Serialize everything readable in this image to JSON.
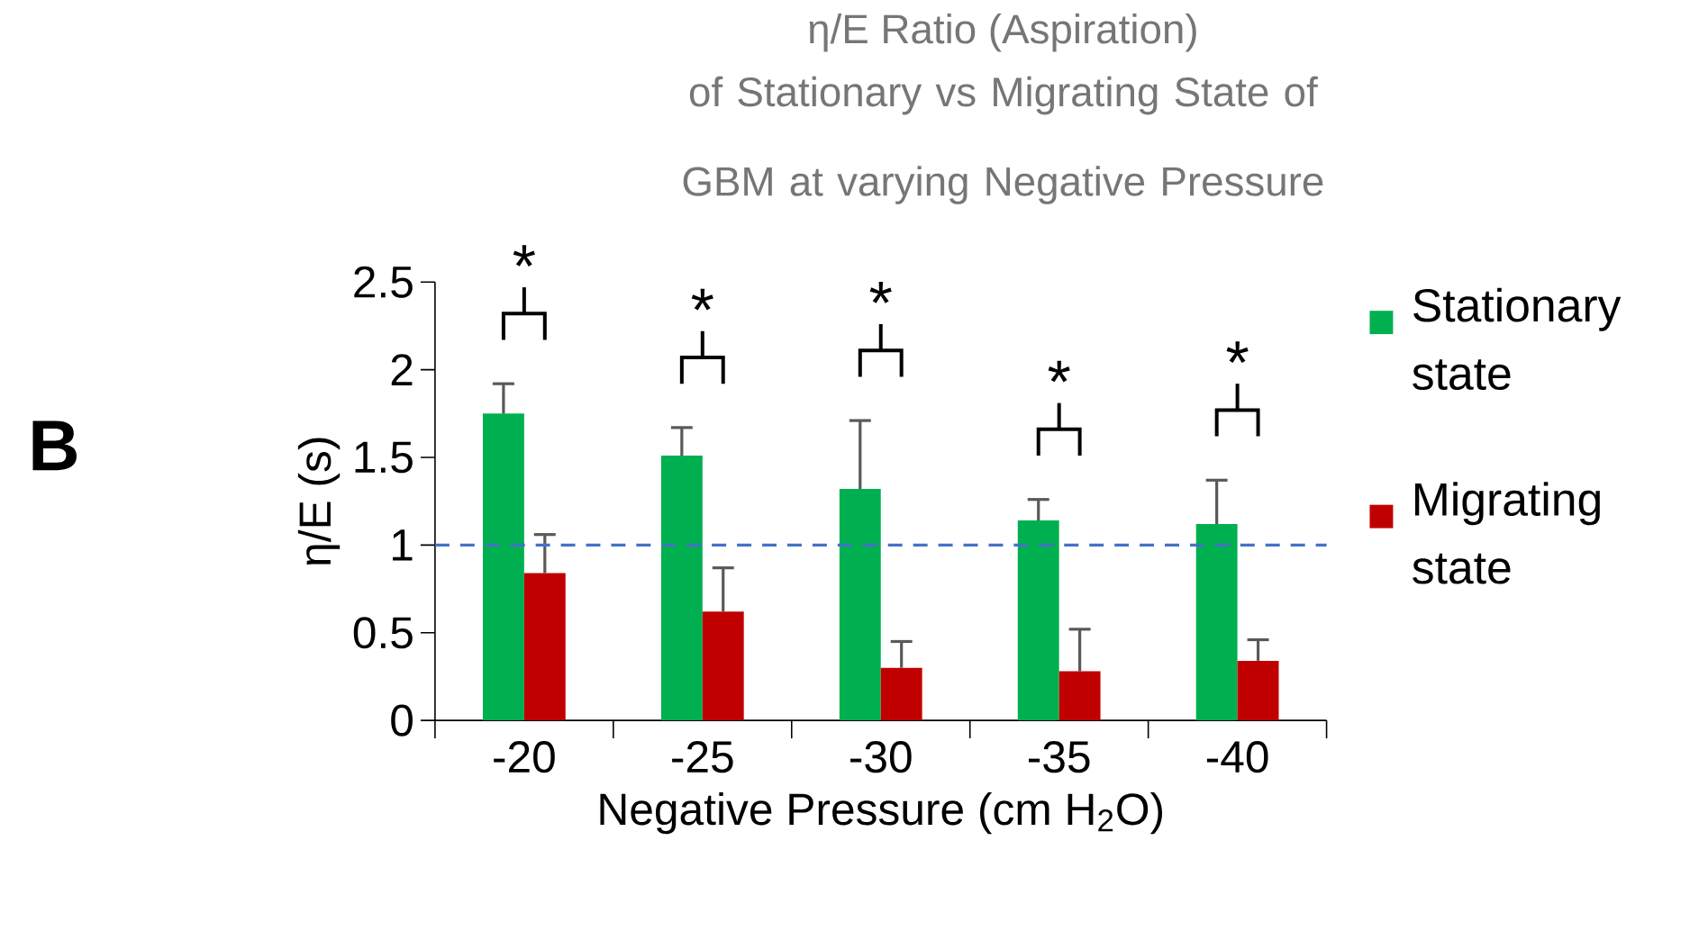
{
  "chart_data": {
    "type": "bar",
    "title": "η/E Ratio (Aspiration)",
    "subtitle": "of Stationary vs Migrating State of GBM at varying Negative Pressure",
    "xlabel": "Negative Pressure (cm H$_{2}$O)",
    "ylabel": "η/E (s)",
    "categories": [
      "-20",
      "-25",
      "-30",
      "-35",
      "-40"
    ],
    "series": [
      {
        "name": "Stationary state",
        "color": "#00b050",
        "values": [
          1.75,
          1.51,
          1.32,
          1.14,
          1.12
        ],
        "errors": [
          0.17,
          0.16,
          0.39,
          0.12,
          0.25
        ]
      },
      {
        "name": "Migrating state",
        "color": "#c00000",
        "values": [
          0.84,
          0.62,
          0.3,
          0.28,
          0.34
        ],
        "errors": [
          0.22,
          0.25,
          0.15,
          0.24,
          0.12
        ]
      }
    ],
    "ylim": [
      0,
      2.5
    ],
    "yticks": [
      0,
      0.5,
      1,
      1.5,
      2,
      2.5
    ],
    "ref_lines": [
      {
        "axis": "y",
        "value": 1,
        "color": "#4472c4",
        "line_style": "dashed"
      }
    ],
    "legend": "right",
    "annotations": [
      "*",
      "*",
      "*",
      "*",
      "*",
      "B"
    ]
  }
}
